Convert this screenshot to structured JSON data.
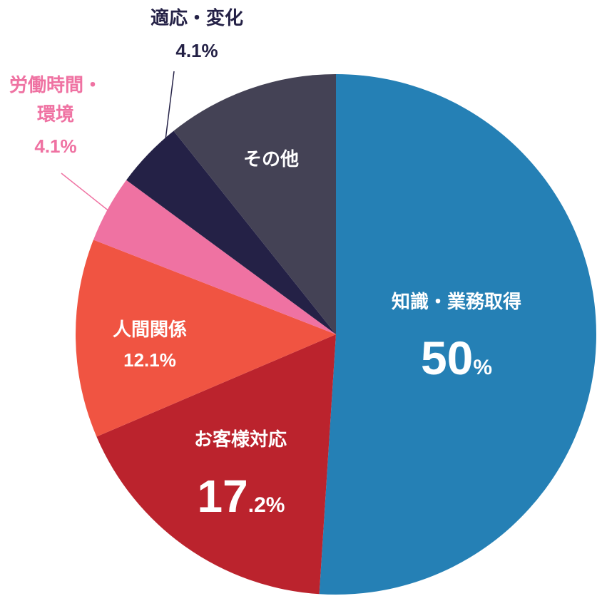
{
  "chart_data": {
    "type": "pie",
    "title": "",
    "start": "top",
    "direction": "clockwise",
    "slices": [
      {
        "label": "知識・業務取得",
        "value": 50,
        "value_main": "50",
        "value_suffix": "%",
        "color": "#2580B5",
        "label_color": "#ffffff"
      },
      {
        "label": "お客様対応",
        "value": 17.2,
        "value_main": "17",
        "value_suffix": ".2%",
        "color": "#BB232D",
        "label_color": "#ffffff"
      },
      {
        "label": "人間関係",
        "value": 12.1,
        "value_text": "12.1%",
        "color": "#F05442",
        "label_color": "#ffffff"
      },
      {
        "label": "労働時間・環境",
        "label_lines": [
          "労働時間・",
          "環境"
        ],
        "value": 4.1,
        "value_text": "4.1%",
        "color": "#EF72A2",
        "label_color": "#EF72A2"
      },
      {
        "label": "適応・変化",
        "value": 4.1,
        "value_text": "4.1%",
        "color": "#242146",
        "label_color": "#242146"
      },
      {
        "label": "その他",
        "value": 10.5,
        "color": "#444255",
        "label_color": "#ffffff"
      }
    ]
  }
}
